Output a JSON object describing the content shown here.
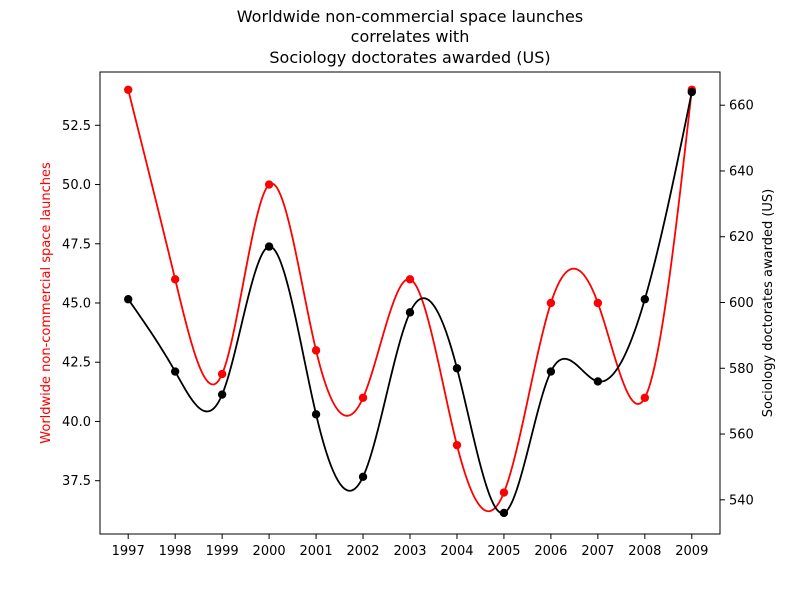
{
  "chart_data": {
    "type": "line",
    "title_lines": [
      "Worldwide non-commercial space launches",
      "correlates with",
      "Sociology doctorates awarded (US)"
    ],
    "x": [
      "1997",
      "1998",
      "1999",
      "2000",
      "2001",
      "2002",
      "2003",
      "2004",
      "2005",
      "2006",
      "2007",
      "2008",
      "2009"
    ],
    "left_axis": {
      "label": "Worldwide non-commercial space launches",
      "ylim": [
        35.25,
        54.75
      ],
      "ticks": [
        "37.5",
        "40.0",
        "42.5",
        "45.0",
        "47.5",
        "50.0",
        "52.5"
      ],
      "color": "#ff0000"
    },
    "right_axis": {
      "label": "Sociology doctorates awarded (US)",
      "ylim": [
        529.6,
        670.1
      ],
      "ticks": [
        "540",
        "560",
        "580",
        "600",
        "620",
        "640",
        "660"
      ],
      "color": "#000000"
    },
    "series": [
      {
        "axis": "left",
        "color": "#ff0000",
        "values": [
          54,
          46,
          42,
          50,
          43,
          41,
          46,
          39,
          37,
          45,
          45,
          41,
          54
        ]
      },
      {
        "axis": "right",
        "color": "#000000",
        "values": [
          601,
          579,
          572,
          617,
          566,
          547,
          597,
          580,
          536,
          579,
          576,
          601,
          664
        ]
      }
    ]
  }
}
